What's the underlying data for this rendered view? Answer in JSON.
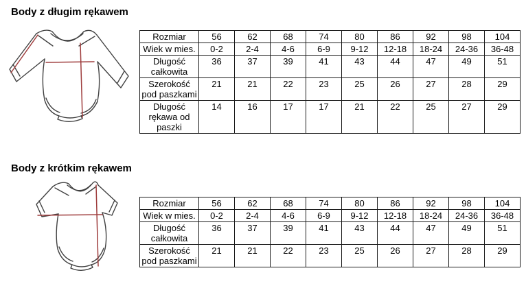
{
  "page": {
    "background_color": "#ffffff",
    "text_color": "#000000",
    "table_border_color": "#1a1a1a",
    "diagram_outline_color": "#404040",
    "measure_line_color": "#9e3c3c"
  },
  "sections": [
    {
      "title": "Body z długim rękawem",
      "diagram": "long-sleeve-bodysuit-diagram",
      "table": {
        "rows": [
          {
            "label": "Rozmiar",
            "values": [
              "56",
              "62",
              "68",
              "74",
              "80",
              "86",
              "92",
              "98",
              "104"
            ]
          },
          {
            "label": "Wiek w mies.",
            "values": [
              "0-2",
              "2-4",
              "4-6",
              "6-9",
              "9-12",
              "12-18",
              "18-24",
              "24-36",
              "36-48"
            ]
          },
          {
            "label": "Długość całkowita",
            "values": [
              "36",
              "37",
              "39",
              "41",
              "43",
              "44",
              "47",
              "49",
              "51"
            ]
          },
          {
            "label": "Szerokość pod paszkami",
            "values": [
              "21",
              "21",
              "22",
              "23",
              "25",
              "26",
              "27",
              "28",
              "29"
            ]
          },
          {
            "label": "Długość rękawa od paszki",
            "values": [
              "14",
              "16",
              "17",
              "17",
              "21",
              "22",
              "25",
              "27",
              "29"
            ]
          }
        ]
      }
    },
    {
      "title": "Body z krótkim rękawem",
      "diagram": "short-sleeve-bodysuit-diagram",
      "table": {
        "rows": [
          {
            "label": "Rozmiar",
            "values": [
              "56",
              "62",
              "68",
              "74",
              "80",
              "86",
              "92",
              "98",
              "104"
            ]
          },
          {
            "label": "Wiek w mies.",
            "values": [
              "0-2",
              "2-4",
              "4-6",
              "6-9",
              "9-12",
              "12-18",
              "18-24",
              "24-36",
              "36-48"
            ]
          },
          {
            "label": "Długość całkowita",
            "values": [
              "36",
              "37",
              "39",
              "41",
              "43",
              "44",
              "47",
              "49",
              "51"
            ]
          },
          {
            "label": "Szerokość pod paszkami",
            "values": [
              "21",
              "21",
              "22",
              "23",
              "25",
              "26",
              "27",
              "28",
              "29"
            ]
          }
        ]
      }
    }
  ]
}
